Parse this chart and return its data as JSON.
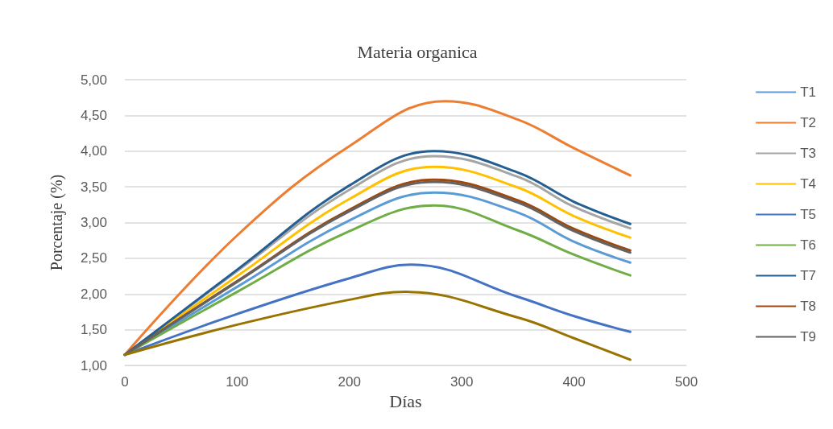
{
  "chart_data": {
    "type": "line",
    "title": "Materia organica",
    "xlabel": "Días",
    "ylabel": "Porcentaje (%)",
    "xlim": [
      0,
      500
    ],
    "xticks": [
      0,
      100,
      200,
      300,
      400,
      500
    ],
    "ylim": [
      1,
      5
    ],
    "yticks": [
      {
        "value": 1,
        "label": "1,00"
      },
      {
        "value": 1.5,
        "label": "1,50"
      },
      {
        "value": 2,
        "label": "2,00"
      },
      {
        "value": 2.5,
        "label": "2,50"
      },
      {
        "value": 3,
        "label": "3,00"
      },
      {
        "value": 3.5,
        "label": "3,50"
      },
      {
        "value": 4,
        "label": "4,00"
      },
      {
        "value": 4.5,
        "label": "4,50"
      },
      {
        "value": 5,
        "label": "5,00"
      }
    ],
    "grid": "y",
    "legend": "right",
    "marker": "none",
    "line_style": "solid",
    "series": [
      {
        "name": "T1",
        "color": "#5b9bd5",
        "x": [
          0,
          100,
          200,
          275,
          350,
          400,
          450
        ],
        "values": [
          1.15,
          2.1,
          3.03,
          3.42,
          3.14,
          2.73,
          2.44
        ]
      },
      {
        "name": "T2",
        "color": "#ed7d31",
        "x": [
          0,
          100,
          200,
          285,
          350,
          400,
          450
        ],
        "values": [
          1.15,
          2.82,
          4.07,
          4.7,
          4.44,
          4.04,
          3.66
        ]
      },
      {
        "name": "T3",
        "color": "#a5a5a5",
        "x": [
          0,
          100,
          200,
          275,
          350,
          400,
          450
        ],
        "values": [
          1.15,
          2.32,
          3.46,
          3.93,
          3.64,
          3.22,
          2.92
        ]
      },
      {
        "name": "T4",
        "color": "#ffc000",
        "x": [
          0,
          100,
          200,
          275,
          350,
          400,
          450
        ],
        "values": [
          1.15,
          2.25,
          3.33,
          3.78,
          3.49,
          3.09,
          2.79
        ]
      },
      {
        "name": "T5",
        "color": "#4472c4",
        "x": [
          0,
          100,
          200,
          255,
          350,
          400,
          450
        ],
        "values": [
          1.15,
          1.72,
          2.22,
          2.41,
          1.96,
          1.69,
          1.47
        ]
      },
      {
        "name": "T6",
        "color": "#70ad47",
        "x": [
          0,
          100,
          200,
          275,
          350,
          400,
          450
        ],
        "values": [
          1.15,
          2.03,
          2.88,
          3.24,
          2.89,
          2.55,
          2.26
        ]
      },
      {
        "name": "T7",
        "color": "#255e91",
        "x": [
          0,
          100,
          200,
          275,
          350,
          400,
          450
        ],
        "values": [
          1.15,
          2.34,
          3.52,
          4.0,
          3.7,
          3.29,
          2.98
        ]
      },
      {
        "name": "T8",
        "color": "#9e480e",
        "x": [
          0,
          100,
          200,
          275,
          350,
          400,
          450
        ],
        "values": [
          1.15,
          2.18,
          3.18,
          3.6,
          3.31,
          2.91,
          2.61
        ]
      },
      {
        "name": "T9",
        "color": "#636363",
        "x": [
          0,
          100,
          200,
          275,
          350,
          400,
          450
        ],
        "values": [
          1.15,
          2.17,
          3.16,
          3.57,
          3.28,
          2.88,
          2.58
        ]
      },
      {
        "color": "#997300",
        "x": [
          0,
          100,
          200,
          250,
          350,
          400,
          450
        ],
        "values": [
          1.15,
          1.57,
          1.92,
          2.03,
          1.67,
          1.38,
          1.08
        ]
      }
    ]
  }
}
